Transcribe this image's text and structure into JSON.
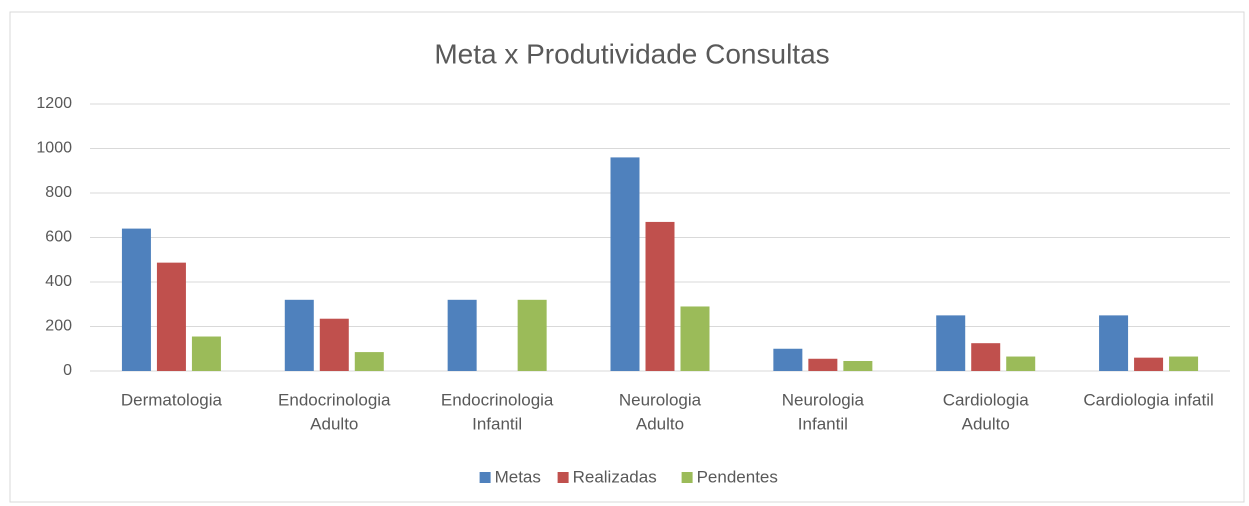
{
  "chart_data": {
    "type": "bar",
    "title": "Meta x Produtividade Consultas",
    "categories": [
      [
        "Dermatologia"
      ],
      [
        "Endocrinologia",
        "Adulto"
      ],
      [
        "Endocrinologia",
        "Infantil"
      ],
      [
        "Neurologia",
        "Adulto"
      ],
      [
        "Neurologia",
        "Infantil"
      ],
      [
        "Cardiologia",
        "Adulto"
      ],
      [
        "Cardiologia infatil"
      ]
    ],
    "series": [
      {
        "name": "Metas",
        "color": "#4f81bd",
        "values": [
          640,
          320,
          320,
          960,
          100,
          250,
          250
        ]
      },
      {
        "name": "Realizadas",
        "color": "#c0504d",
        "values": [
          487,
          235,
          0,
          670,
          55,
          125,
          60
        ]
      },
      {
        "name": "Pendentes",
        "color": "#9bbb59",
        "values": [
          155,
          85,
          320,
          290,
          45,
          65,
          65
        ]
      }
    ],
    "ylim": [
      0,
      1200
    ],
    "yticks": [
      0,
      200,
      400,
      600,
      800,
      1000,
      1200
    ],
    "grid": true,
    "legend": "bottom"
  }
}
